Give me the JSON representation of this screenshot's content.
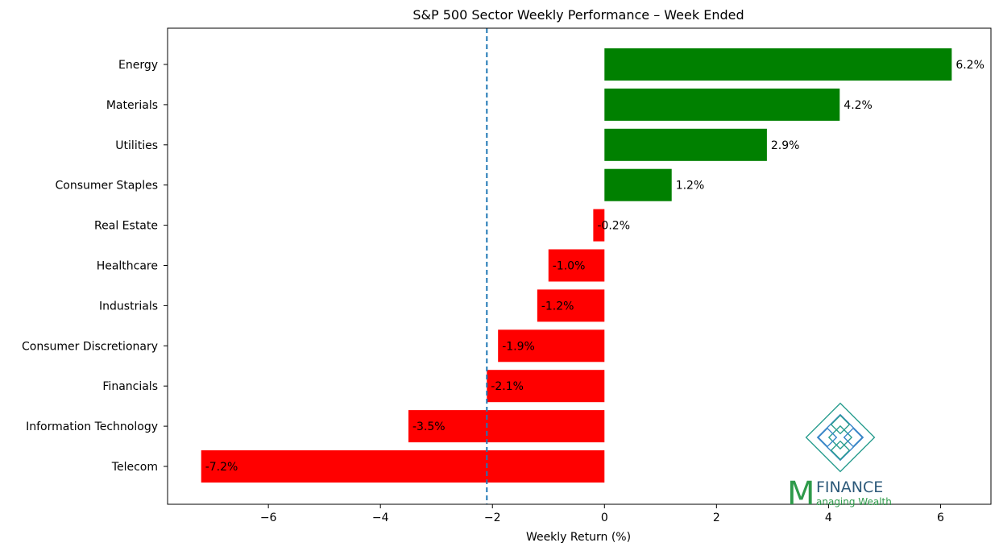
{
  "chart_data": {
    "type": "bar",
    "orientation": "horizontal",
    "title": "S&P 500 Sector Weekly Performance – Week Ended",
    "xlabel": "Weekly Return (%)",
    "ylabel": "",
    "xlim": [
      -7.8,
      6.9
    ],
    "xticks": [
      -6,
      -4,
      -2,
      0,
      2,
      4,
      6
    ],
    "xtick_labels": [
      "−6",
      "−4",
      "−2",
      "0",
      "2",
      "4",
      "6"
    ],
    "categories": [
      "Energy",
      "Materials",
      "Utilities",
      "Consumer Staples",
      "Real Estate",
      "Healthcare",
      "Industrials",
      "Consumer Discretionary",
      "Financials",
      "Information Technology",
      "Telecom"
    ],
    "values": [
      6.2,
      4.2,
      2.9,
      1.2,
      -0.2,
      -1.0,
      -1.2,
      -1.9,
      -2.1,
      -3.5,
      -7.2
    ],
    "value_labels": [
      "6.2%",
      "4.2%",
      "2.9%",
      "1.2%",
      "-0.2%",
      "-1.0%",
      "-1.2%",
      "-1.9%",
      "-2.1%",
      "-3.5%",
      "-7.2%"
    ],
    "reference_line": {
      "x": -2.1,
      "style": "dashed"
    },
    "grid": false,
    "colors": {
      "positive": "#008000",
      "negative": "#ff0000",
      "reference_line": "#1f77b4"
    }
  },
  "logo": {
    "letter": "M",
    "name": "FINANCE",
    "tagline": "anaging Wealth",
    "colors": {
      "green": "#2e9a4a",
      "blue": "#2d5a7a",
      "knot_teal": "#2a9d8f",
      "knot_blue": "#3a86c8"
    }
  }
}
